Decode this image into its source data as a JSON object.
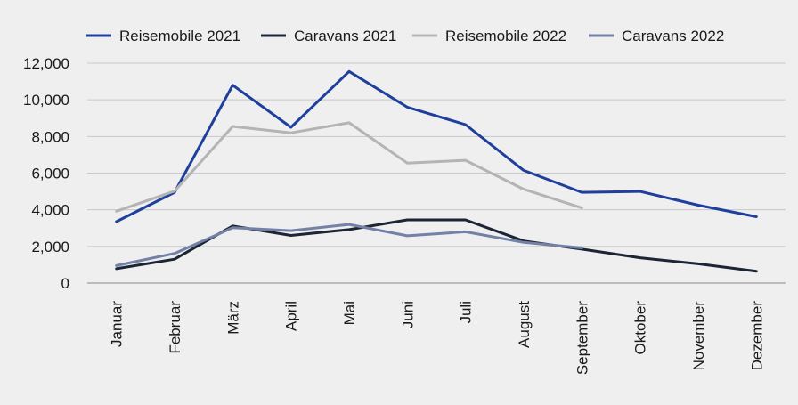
{
  "chart_data": {
    "type": "line",
    "title": "",
    "xlabel": "",
    "ylabel": "",
    "categories": [
      "Januar",
      "Februar",
      "März",
      "April",
      "Mai",
      "Juni",
      "Juli",
      "August",
      "September",
      "Oktober",
      "November",
      "Dezember"
    ],
    "ylim": [
      0,
      12000
    ],
    "yticks": [
      0,
      2000,
      4000,
      6000,
      8000,
      10000,
      12000
    ],
    "ytick_labels": [
      "0",
      "2,000",
      "4,000",
      "6,000",
      "8,000",
      "10,000",
      "12,000"
    ],
    "grid": true,
    "legend_position": "top",
    "series": [
      {
        "name": "Reisemobile 2021",
        "color": "#1f3f9c",
        "values": [
          3350,
          4950,
          10800,
          8500,
          11550,
          9600,
          8650,
          6150,
          4950,
          5000,
          4250,
          3620
        ]
      },
      {
        "name": "Caravans 2021",
        "color": "#1b2535",
        "values": [
          780,
          1300,
          3120,
          2600,
          2920,
          3450,
          3450,
          2300,
          1850,
          1380,
          1050,
          640
        ]
      },
      {
        "name": "Reisemobile 2022",
        "color": "#b4b4b4",
        "values": [
          3920,
          5020,
          8550,
          8200,
          8750,
          6550,
          6700,
          5120,
          4100,
          null,
          null,
          null
        ]
      },
      {
        "name": "Caravans 2022",
        "color": "#7381a6",
        "values": [
          950,
          1620,
          3020,
          2860,
          3200,
          2580,
          2800,
          2220,
          1920,
          null,
          null,
          null
        ]
      }
    ]
  }
}
